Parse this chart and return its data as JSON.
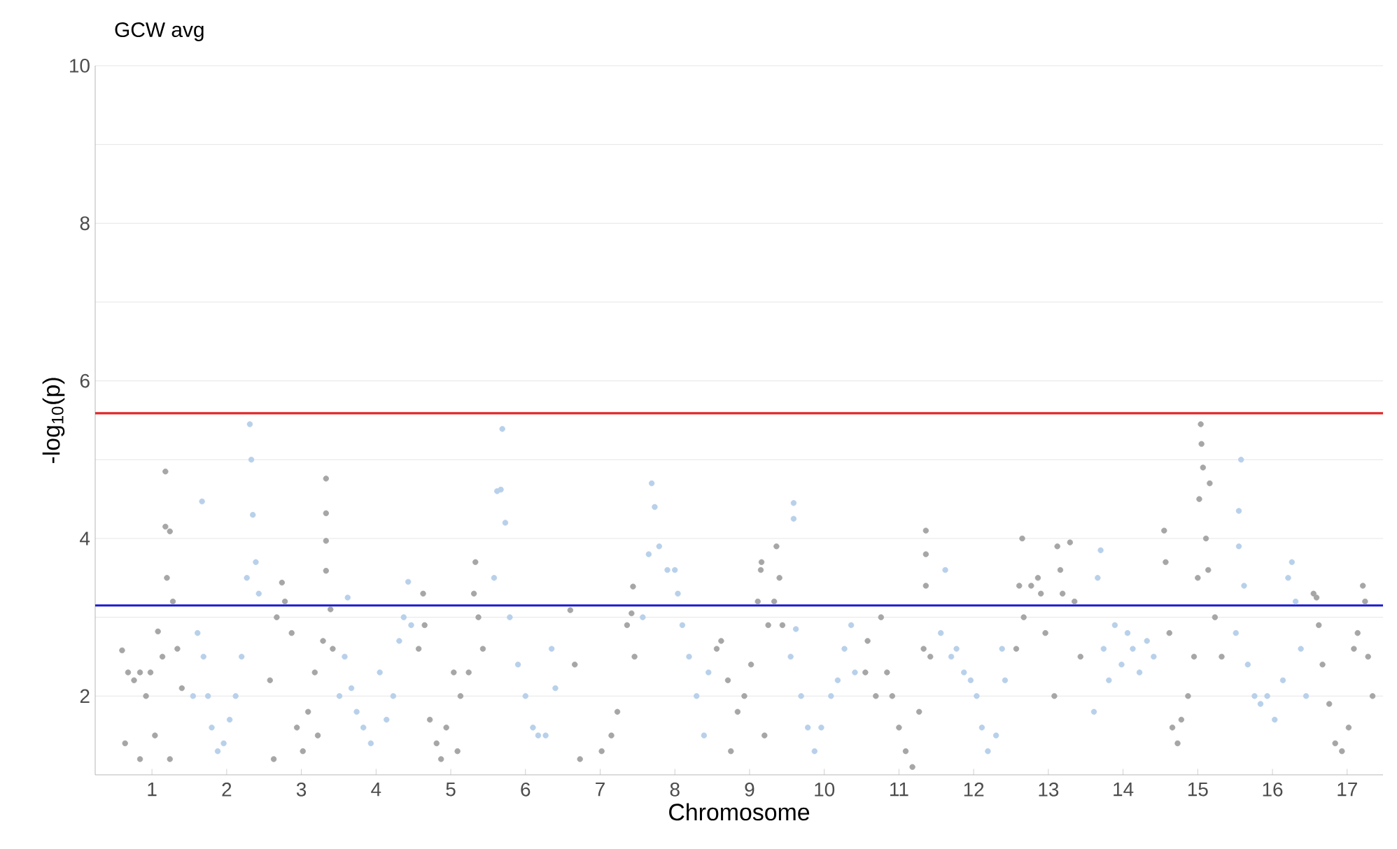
{
  "chart_data": {
    "type": "scatter",
    "title": "GCW avg",
    "xlabel": "Chromosome",
    "ylabel": "-log$_{10}$(p)",
    "marker": "circle",
    "grid": "y",
    "xlim": [
      0.24,
      17.48
    ],
    "ylim": [
      1,
      10
    ],
    "xticks": [
      1,
      2,
      3,
      4,
      5,
      6,
      7,
      8,
      9,
      10,
      11,
      12,
      13,
      14,
      15,
      16,
      17
    ],
    "yticks": [
      2,
      {
        "value": 3,
        "label": null
      },
      4,
      {
        "value": 5,
        "label": null
      },
      6,
      {
        "value": 7,
        "label": null
      },
      8,
      {
        "value": 9,
        "label": null
      },
      10
    ],
    "ref_lines": [
      {
        "axis": "y",
        "value": 5.59,
        "color": "#e02828"
      },
      {
        "axis": "y",
        "value": 3.15,
        "color": "#1c1cd0"
      }
    ],
    "series": [
      {
        "color": "#a6a6a6",
        "x": [
          0.6,
          0.68,
          0.76,
          0.84,
          0.92,
          0.98,
          1.08,
          1.14,
          1.18,
          1.18,
          1.2,
          1.24,
          1.28,
          1.34,
          1.4,
          0.64,
          0.84,
          1.04,
          1.24,
          2.58,
          2.67,
          2.74,
          2.78,
          2.87,
          2.94,
          3.02,
          3.09,
          3.18,
          3.29,
          3.33,
          3.33,
          3.33,
          3.33,
          3.39,
          3.42,
          2.63,
          3.22,
          4.57,
          4.63,
          4.65,
          4.72,
          4.81,
          4.94,
          5.04,
          5.13,
          5.24,
          5.31,
          5.33,
          5.37,
          5.43,
          4.87,
          5.09,
          6.6,
          6.66,
          6.73,
          7.02,
          7.15,
          7.23,
          7.36,
          7.42,
          7.44,
          7.46,
          8.56,
          8.62,
          8.71,
          8.84,
          8.93,
          9.02,
          9.11,
          9.15,
          9.16,
          9.25,
          9.33,
          9.36,
          9.4,
          9.44,
          8.75,
          9.2,
          10.55,
          10.58,
          10.69,
          10.76,
          10.84,
          10.91,
          11.0,
          11.09,
          11.18,
          11.27,
          11.33,
          11.36,
          11.36,
          11.36,
          11.42,
          12.57,
          12.61,
          12.65,
          12.67,
          12.77,
          12.86,
          12.9,
          12.96,
          13.08,
          13.12,
          13.16,
          13.19,
          13.29,
          13.35,
          13.43,
          14.55,
          14.57,
          14.62,
          14.66,
          14.73,
          14.78,
          14.87,
          14.95,
          15.0,
          15.02,
          15.04,
          15.05,
          15.07,
          15.11,
          15.14,
          15.16,
          15.23,
          15.32,
          16.55,
          16.59,
          16.62,
          16.67,
          16.76,
          16.84,
          16.93,
          17.02,
          17.09,
          17.14,
          17.21,
          17.24,
          17.28,
          17.34
        ],
        "values": [
          2.58,
          2.3,
          2.2,
          2.3,
          2.0,
          2.3,
          2.82,
          2.5,
          4.85,
          4.15,
          3.5,
          4.09,
          3.2,
          2.6,
          2.1,
          1.4,
          1.2,
          1.5,
          1.2,
          2.2,
          3.0,
          3.44,
          3.2,
          2.8,
          1.6,
          1.3,
          1.8,
          2.3,
          2.7,
          4.76,
          4.32,
          3.97,
          3.59,
          3.1,
          2.6,
          1.2,
          1.5,
          2.6,
          3.3,
          2.9,
          1.7,
          1.4,
          1.6,
          2.3,
          2.0,
          2.3,
          3.3,
          3.7,
          3.0,
          2.6,
          1.2,
          1.3,
          3.09,
          2.4,
          1.2,
          1.3,
          1.5,
          1.8,
          2.9,
          3.05,
          3.39,
          2.5,
          2.6,
          2.7,
          2.2,
          1.8,
          2.0,
          2.4,
          3.2,
          3.6,
          3.7,
          2.9,
          3.2,
          3.9,
          3.5,
          2.9,
          1.3,
          1.5,
          2.3,
          2.7,
          2.0,
          3.0,
          2.3,
          2.0,
          1.6,
          1.3,
          1.1,
          1.8,
          2.6,
          4.1,
          3.8,
          3.4,
          2.5,
          2.6,
          3.4,
          4.0,
          3.0,
          3.4,
          3.5,
          3.3,
          2.8,
          2.0,
          3.9,
          3.6,
          3.3,
          3.95,
          3.2,
          2.5,
          4.1,
          3.7,
          2.8,
          1.6,
          1.4,
          1.7,
          2.0,
          2.5,
          3.5,
          4.5,
          5.45,
          5.2,
          4.9,
          4.0,
          3.6,
          4.7,
          3.0,
          2.5,
          3.3,
          3.25,
          2.9,
          2.4,
          1.9,
          1.4,
          1.3,
          1.6,
          2.6,
          2.8,
          3.4,
          3.2,
          2.5,
          2.0
        ]
      },
      {
        "color": "#b8d0ea",
        "x": [
          1.55,
          1.61,
          1.67,
          1.69,
          1.75,
          1.8,
          1.88,
          1.96,
          2.04,
          2.12,
          2.2,
          2.27,
          2.31,
          2.33,
          2.35,
          2.39,
          2.43,
          3.51,
          3.58,
          3.62,
          3.67,
          3.74,
          3.83,
          3.93,
          4.05,
          4.14,
          4.23,
          4.31,
          4.37,
          4.43,
          4.47,
          5.58,
          5.62,
          5.67,
          5.69,
          5.73,
          5.79,
          5.9,
          6.0,
          6.1,
          6.17,
          6.27,
          6.35,
          6.4,
          7.57,
          7.65,
          7.69,
          7.73,
          7.79,
          7.9,
          8.0,
          8.04,
          8.1,
          8.19,
          8.29,
          8.39,
          8.45,
          9.55,
          9.59,
          9.59,
          9.62,
          9.69,
          9.78,
          9.87,
          9.96,
          10.09,
          10.18,
          10.27,
          10.36,
          10.41,
          11.56,
          11.62,
          11.7,
          11.77,
          11.87,
          11.96,
          12.04,
          12.11,
          12.19,
          12.3,
          12.38,
          12.42,
          13.61,
          13.66,
          13.7,
          13.74,
          13.81,
          13.89,
          13.98,
          14.06,
          14.13,
          14.22,
          14.32,
          14.41,
          15.51,
          15.55,
          15.55,
          15.58,
          15.62,
          15.67,
          15.76,
          15.84,
          15.93,
          16.03,
          16.14,
          16.21,
          16.26,
          16.31,
          16.38,
          16.45
        ],
        "values": [
          2.0,
          2.8,
          4.47,
          2.5,
          2.0,
          1.6,
          1.3,
          1.4,
          1.7,
          2.0,
          2.5,
          3.5,
          5.45,
          5.0,
          4.3,
          3.7,
          3.3,
          2.0,
          2.5,
          3.25,
          2.1,
          1.8,
          1.6,
          1.4,
          2.3,
          1.7,
          2.0,
          2.7,
          3.0,
          3.45,
          2.9,
          3.5,
          4.6,
          4.62,
          5.39,
          4.2,
          3.0,
          2.4,
          2.0,
          1.6,
          1.5,
          1.5,
          2.6,
          2.1,
          3.0,
          3.8,
          4.7,
          4.4,
          3.9,
          3.6,
          3.6,
          3.3,
          2.9,
          2.5,
          2.0,
          1.5,
          2.3,
          2.5,
          4.45,
          4.25,
          2.85,
          2.0,
          1.6,
          1.3,
          1.6,
          2.0,
          2.2,
          2.6,
          2.9,
          2.3,
          2.8,
          3.6,
          2.5,
          2.6,
          2.3,
          2.2,
          2.0,
          1.6,
          1.3,
          1.5,
          2.6,
          2.2,
          1.8,
          3.5,
          3.85,
          2.6,
          2.2,
          2.9,
          2.4,
          2.8,
          2.6,
          2.3,
          2.7,
          2.5,
          2.8,
          4.35,
          3.9,
          5.0,
          3.4,
          2.4,
          2.0,
          1.9,
          2.0,
          1.7,
          2.2,
          3.5,
          3.7,
          3.2,
          2.6,
          2.0
        ]
      }
    ]
  }
}
